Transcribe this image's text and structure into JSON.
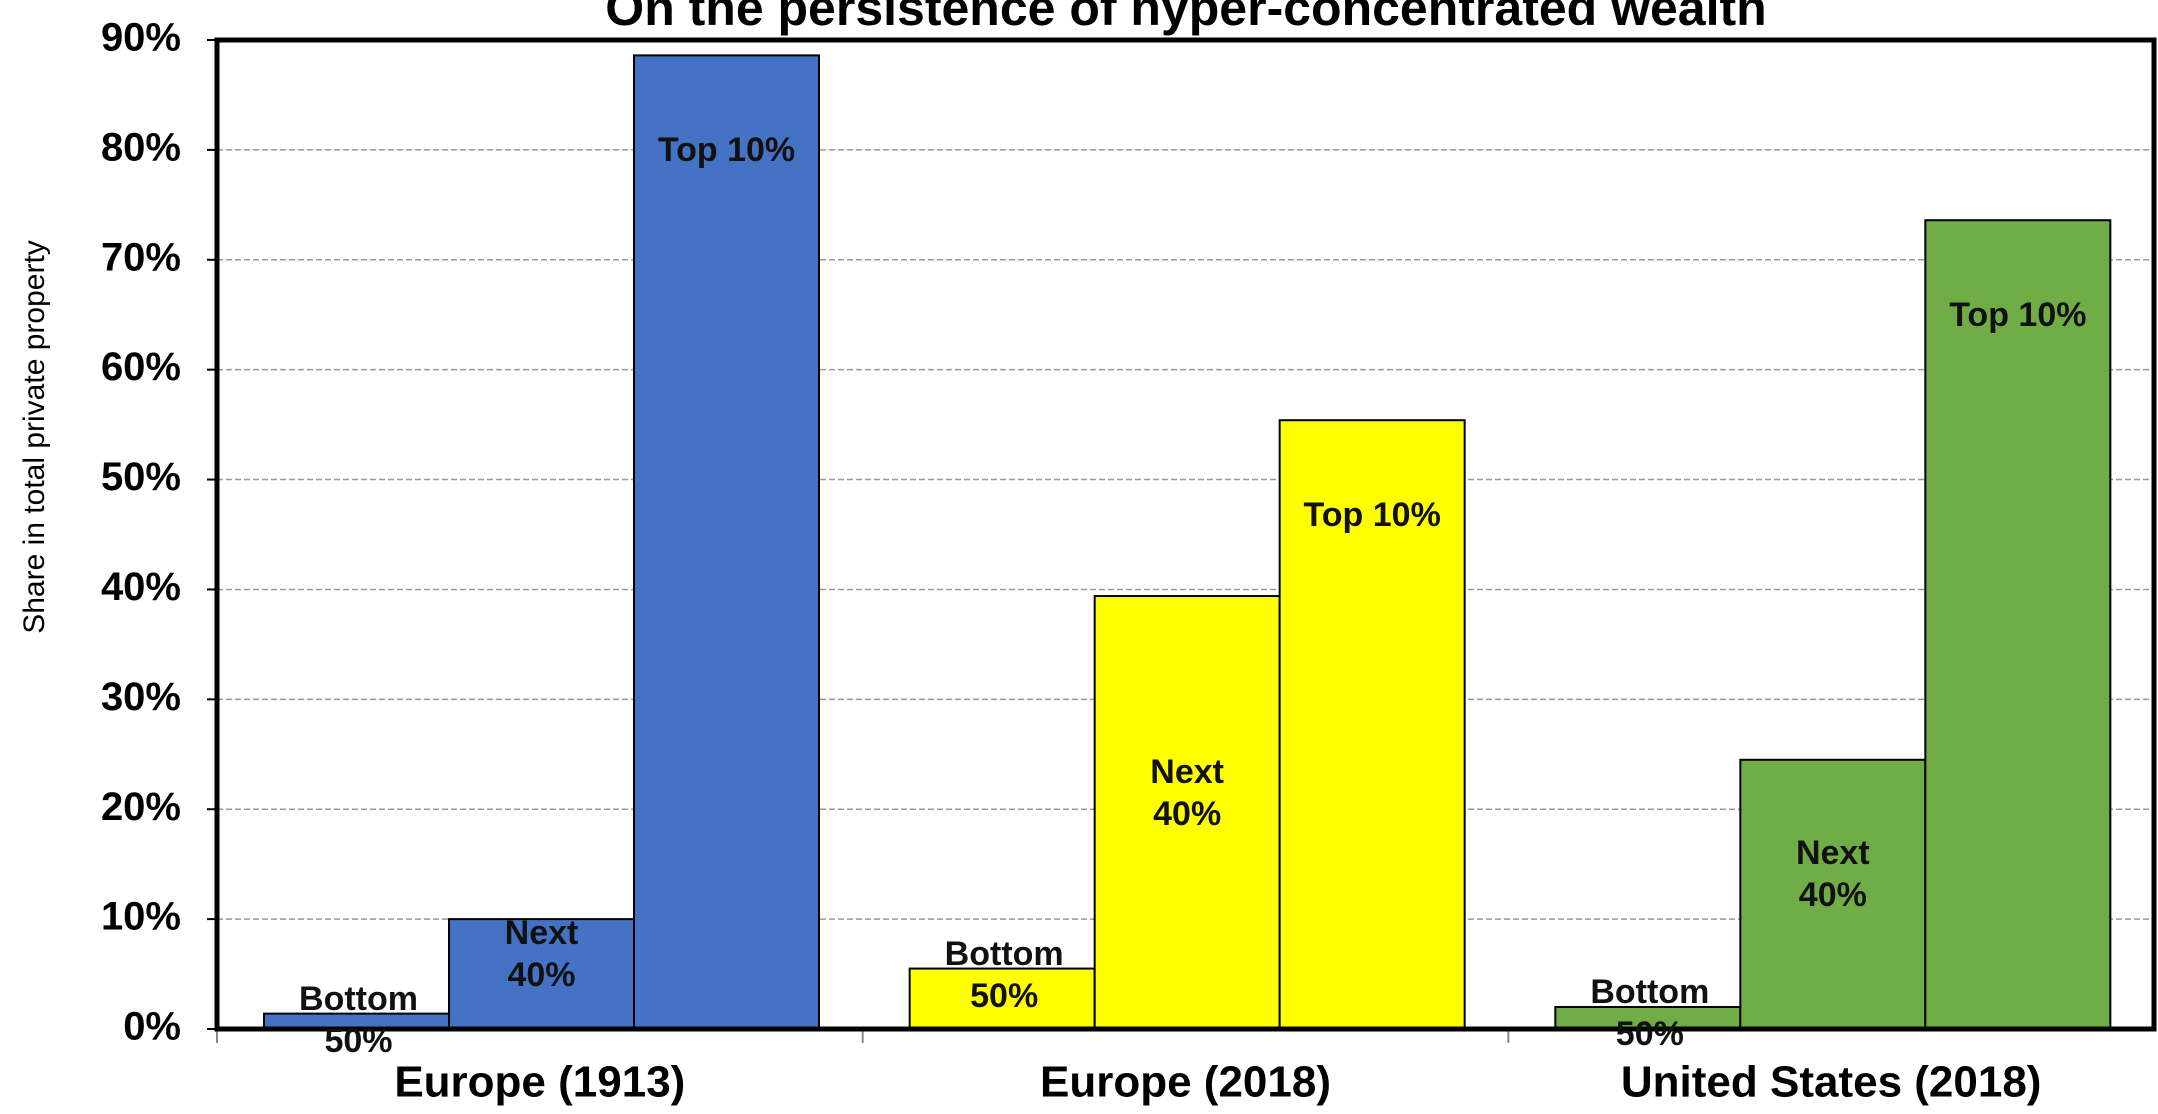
{
  "chart_data": {
    "type": "grouped_bar",
    "title": "On the persistence of hyper-concentrated wealth",
    "y_label": "Share in total private property",
    "categories": [
      "Europe (1913)",
      "Europe (2018)",
      "United States (2018)"
    ],
    "category_colors": [
      "#4472c4",
      "#ffff00",
      "#70ad47"
    ],
    "series": [
      {
        "name": "Bottom 50%",
        "values": [
          1.4,
          5.5,
          2.0
        ]
      },
      {
        "name": "Next 40%",
        "values": [
          10.0,
          39.4,
          24.5
        ]
      },
      {
        "name": "Top 10%",
        "values": [
          88.6,
          55.4,
          73.6
        ]
      }
    ],
    "ylim": [
      0,
      90
    ],
    "yticks": [
      {
        "value": 0,
        "label": "0%"
      },
      {
        "value": 10,
        "label": "10%"
      },
      {
        "value": 20,
        "label": "20%"
      },
      {
        "value": 30,
        "label": "30%"
      },
      {
        "value": 40,
        "label": "40%"
      },
      {
        "value": 50,
        "label": "50%"
      },
      {
        "value": 60,
        "label": "60%"
      },
      {
        "value": 70,
        "label": "70%"
      },
      {
        "value": 80,
        "label": "80%"
      },
      {
        "value": 90,
        "label": "90%"
      }
    ],
    "grid": true
  }
}
